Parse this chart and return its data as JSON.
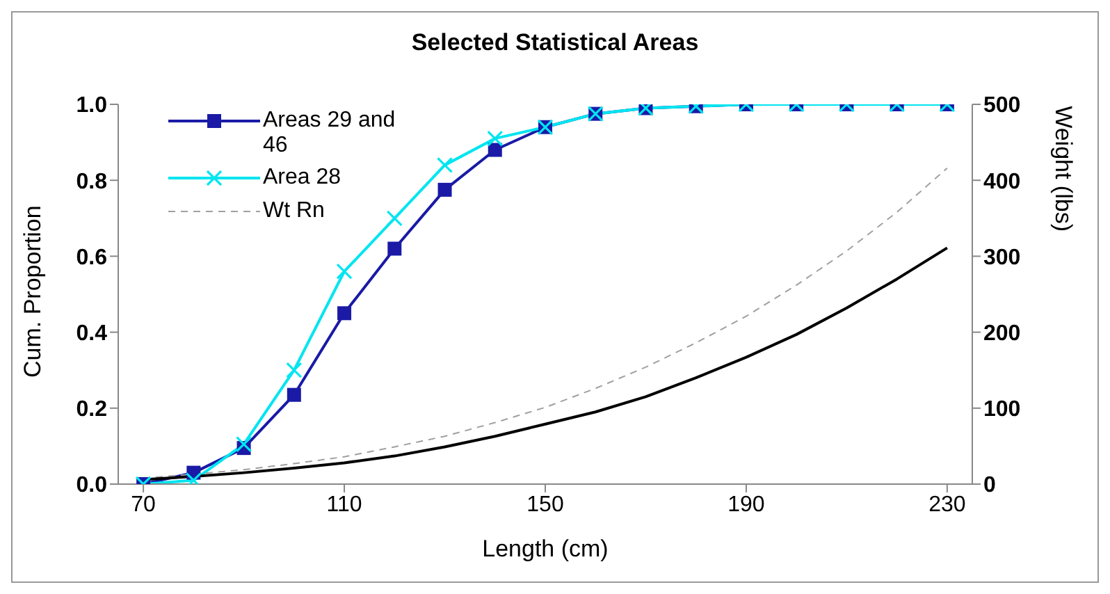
{
  "chart_data": {
    "type": "line",
    "title": "Selected Statistical Areas",
    "xlabel": "Length (cm)",
    "ylabel": "Cum. Proportion",
    "y2label": "Weight (lbs)",
    "x": [
      70,
      80,
      90,
      100,
      110,
      120,
      130,
      140,
      150,
      160,
      170,
      180,
      190,
      200,
      210,
      220,
      230
    ],
    "series": [
      {
        "name": "Areas 29 and 46",
        "color": "#1a1aa6",
        "marker": "square",
        "values": [
          0,
          0.03,
          0.095,
          0.235,
          0.45,
          0.62,
          0.775,
          0.88,
          0.94,
          0.975,
          0.99,
          0.995,
          1.0,
          1.0,
          1.0,
          1.0,
          1.0
        ]
      },
      {
        "name": "Area 28",
        "color": "#00e5f0",
        "marker": "cross",
        "values": [
          0,
          0.01,
          0.105,
          0.3,
          0.56,
          0.7,
          0.84,
          0.91,
          0.94,
          0.975,
          0.99,
          0.995,
          1.0,
          1.0,
          1.0,
          1.0,
          1.0
        ]
      },
      {
        "name": "Wt Rn",
        "color": "#a0a0a0",
        "marker": "none",
        "line_style": "dashed",
        "axis": "y2",
        "values": [
          8,
          13,
          19,
          27,
          36,
          49,
          63,
          81,
          101,
          126,
          154,
          186,
          221,
          262,
          307,
          358,
          416
        ]
      },
      {
        "color": "#000000",
        "marker": "none",
        "axis": "y2",
        "values": [
          6,
          10,
          15,
          21,
          28,
          37,
          49,
          63,
          79,
          95,
          115,
          140,
          167,
          197,
          232,
          270,
          311
        ]
      }
    ],
    "xlim": [
      65,
      235
    ],
    "xticks": [
      70,
      110,
      150,
      190,
      230
    ],
    "ylim": [
      0,
      1
    ],
    "yticks": [
      {
        "value": 0,
        "label": "0.0"
      },
      {
        "value": 0.2,
        "label": "0.2"
      },
      {
        "value": 0.4,
        "label": "0.4"
      },
      {
        "value": 0.6,
        "label": "0.6"
      },
      {
        "value": 0.8,
        "label": "0.8"
      },
      {
        "value": 1,
        "label": "1.0"
      }
    ],
    "y2lim": [
      0,
      500
    ],
    "y2ticks": [
      0,
      100,
      200,
      300,
      400,
      500
    ],
    "legend": "top left"
  }
}
